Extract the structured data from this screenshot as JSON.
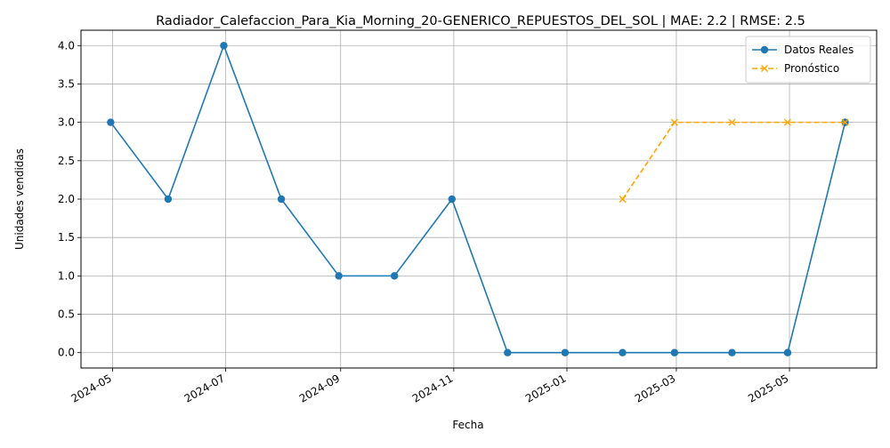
{
  "chart_data": {
    "type": "line",
    "title": "Radiador_Calefaccion_Para_Kia_Morning_20-GENERICO_REPUESTOS_DEL_SOL | MAE: 2.2 | RMSE: 2.5",
    "xlabel": "Fecha",
    "ylabel": "Unidades vendidas",
    "ylim": [
      -0.2,
      4.2
    ],
    "xlim": [
      "2024-04-14",
      "2025-06-17"
    ],
    "grid": true,
    "legend_position": "top-right",
    "x_ticks": [
      "2024-05",
      "2024-07",
      "2024-09",
      "2024-11",
      "2025-01",
      "2025-03",
      "2025-05"
    ],
    "y_ticks": [
      "0.0",
      "0.5",
      "1.0",
      "1.5",
      "2.0",
      "2.5",
      "3.0",
      "3.5",
      "4.0"
    ],
    "series": [
      {
        "name": "Datos Reales",
        "color": "#1f77b4",
        "style": "solid",
        "marker": "circle",
        "x": [
          "2024-04-30",
          "2024-05-31",
          "2024-06-30",
          "2024-07-31",
          "2024-08-31",
          "2024-09-30",
          "2024-10-31",
          "2024-11-30",
          "2024-12-31",
          "2025-01-31",
          "2025-02-28",
          "2025-03-31",
          "2025-04-30",
          "2025-05-31"
        ],
        "values": [
          3,
          2,
          4,
          2,
          1,
          1,
          2,
          0,
          0,
          0,
          0,
          0,
          0,
          3
        ]
      },
      {
        "name": "Pronóstico",
        "color": "#ffa500",
        "style": "dashed",
        "marker": "x",
        "x": [
          "2025-01-31",
          "2025-02-28",
          "2025-03-31",
          "2025-04-30",
          "2025-05-31"
        ],
        "values": [
          2,
          3,
          3,
          3,
          3
        ]
      }
    ]
  }
}
